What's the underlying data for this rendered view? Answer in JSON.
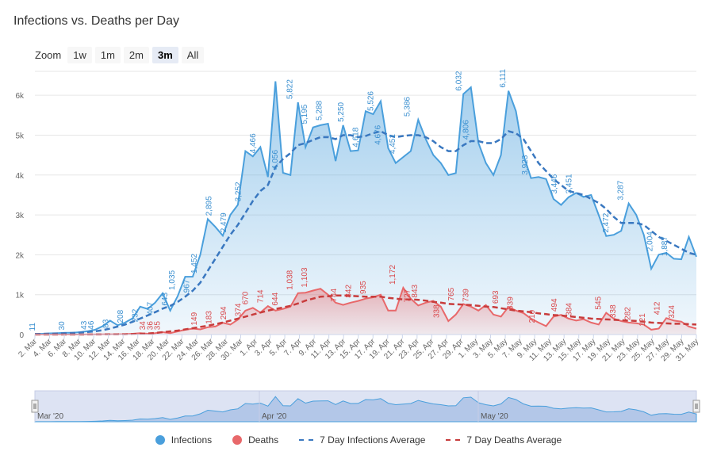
{
  "title": "Infections vs. Deaths per Day",
  "zoom": {
    "label": "Zoom",
    "buttons": [
      "1w",
      "1m",
      "2m",
      "3m",
      "All"
    ],
    "active": "3m"
  },
  "colors": {
    "infections": "#4a9fdc",
    "deaths": "#e8686a",
    "inf_avg": "#3a78c0",
    "death_avg": "#c83c3c"
  },
  "navigator": {
    "labels": [
      "Mar '20",
      "Apr '20",
      "May '20"
    ]
  },
  "legend": [
    "Infections",
    "Deaths",
    "7 Day Infections Average",
    "7 Day Deaths Average"
  ],
  "chart_data": {
    "type": "area",
    "x_labels": [
      "2. Mar",
      "4. Mar",
      "6. Mar",
      "8. Mar",
      "10. Mar",
      "12. Mar",
      "14. Mar",
      "16. Mar",
      "18. Mar",
      "20. Mar",
      "22. Mar",
      "24. Mar",
      "26. Mar",
      "28. Mar",
      "30. Mar",
      "1. Apr",
      "3. Apr",
      "5. Apr",
      "7. Apr",
      "9. Apr",
      "11. Apr",
      "13. Apr",
      "15. Apr",
      "17. Apr",
      "19. Apr",
      "21. Apr",
      "23. Apr",
      "25. Apr",
      "27. Apr",
      "29. Apr",
      "1. May",
      "3. May",
      "5. May",
      "7. May",
      "9. May",
      "11. May",
      "13. May",
      "15. May",
      "17. May",
      "19. May",
      "21. May",
      "23. May",
      "25. May",
      "27. May",
      "29. May",
      "31. May"
    ],
    "y_ticks": [
      0,
      1000,
      2000,
      3000,
      4000,
      5000,
      6000
    ],
    "y_tick_labels": [
      "0",
      "1k",
      "2k",
      "3k",
      "4k",
      "5k",
      "6k"
    ],
    "ylim": [
      0,
      6600
    ],
    "legend_position": "bottom",
    "series": [
      {
        "name": "Infections",
        "values": [
          11,
          20,
          30,
          35,
          43,
          46,
          60,
          83,
          120,
          208,
          350,
          232,
          300,
          407,
          700,
          643,
          800,
          1035,
          600,
          967,
          1450,
          1452,
          2000,
          2895,
          2700,
          2479,
          3000,
          3252,
          4600,
          4466,
          4700,
          3950,
          6350,
          4056,
          4000,
          5822,
          4700,
          5195,
          5250,
          5288,
          4350,
          5250,
          4600,
          4618,
          5600,
          5526,
          5850,
          4676,
          4300,
          4451,
          4600,
          5386,
          4900,
          4500,
          4300,
          4000,
          4050,
          6032,
          6200,
          4806,
          4300,
          4000,
          4500,
          6111,
          5600,
          4500,
          3923,
          3950,
          3900,
          3400,
          3250,
          3446,
          3550,
          3451,
          3500,
          3000,
          2472,
          2500,
          2600,
          3287,
          3000,
          2500,
          1650,
          2004,
          2050,
          1900,
          1887,
          2450,
          1950
        ],
        "labels": [
          [
            "2. Mar",
            11
          ],
          [
            "6. Mar",
            30
          ],
          [
            "9. Mar",
            43
          ],
          [
            "10. Mar",
            46
          ],
          [
            "12. Mar",
            83
          ],
          [
            "14. Mar",
            208
          ],
          [
            "16. Mar",
            232
          ],
          [
            "18. Mar",
            407
          ],
          [
            "20. Mar",
            643
          ],
          [
            "21. Mar",
            1035
          ],
          [
            "23. Mar",
            967
          ],
          [
            "24. Mar",
            1452
          ],
          [
            "26. Mar",
            2895
          ],
          [
            "28. Mar",
            2479
          ],
          [
            "30. Mar",
            3252
          ],
          [
            "2. Apr",
            4466
          ],
          [
            "5. Apr",
            4056
          ],
          [
            "7. Apr",
            5822
          ],
          [
            "9. Apr",
            5195
          ],
          [
            "11. Apr",
            5288
          ],
          [
            "14. Apr",
            5250
          ],
          [
            "16. Apr",
            4618
          ],
          [
            "18. Apr",
            5526
          ],
          [
            "19. Apr",
            4676
          ],
          [
            "21. Apr",
            4451
          ],
          [
            "23. Apr",
            5386
          ],
          [
            "30. Apr",
            6032
          ],
          [
            "1. May",
            4806
          ],
          [
            "6. May",
            6111
          ],
          [
            "9. May",
            3923
          ],
          [
            "13. May",
            3446
          ],
          [
            "15. May",
            3451
          ],
          [
            "20. May",
            2472
          ],
          [
            "22. May",
            3287
          ],
          [
            "26. May",
            2004
          ],
          [
            "28. May",
            1887
          ]
        ]
      },
      {
        "name": "Deaths",
        "values": [
          0,
          0,
          0,
          0,
          0,
          0,
          0,
          1,
          2,
          3,
          5,
          8,
          10,
          20,
          34,
          20,
          35,
          60,
          36,
          80,
          120,
          149,
          130,
          183,
          200,
          294,
          250,
          374,
          600,
          670,
          550,
          714,
          600,
          644,
          700,
          1038,
          1050,
          1103,
          1150,
          1000,
          800,
          744,
          800,
          842,
          900,
          935,
          1000,
          600,
          600,
          1172,
          900,
          727,
          800,
          843,
          700,
          338,
          500,
          765,
          700,
          600,
          739,
          500,
          450,
          693,
          600,
          539,
          400,
          300,
          210,
          450,
          494,
          400,
          350,
          384,
          300,
          250,
          545,
          400,
          338,
          300,
          282,
          250,
          121,
          150,
          412,
          350,
          324,
          200,
          150
        ],
        "labels": [
          [
            "17. Mar",
            34
          ],
          [
            "18. Mar",
            36
          ],
          [
            "19. Mar",
            35
          ],
          [
            "24. Mar",
            149
          ],
          [
            "26. Mar",
            183
          ],
          [
            "28. Mar",
            294
          ],
          [
            "30. Mar",
            374
          ],
          [
            "1. Apr",
            670
          ],
          [
            "3. Apr",
            714
          ],
          [
            "5. Apr",
            644
          ],
          [
            "7. Apr",
            1038
          ],
          [
            "9. Apr",
            1103
          ],
          [
            "13. Apr",
            744
          ],
          [
            "15. Apr",
            842
          ],
          [
            "17. Apr",
            935
          ],
          [
            "21. Apr",
            1172
          ],
          [
            "23. Apr",
            727
          ],
          [
            "24. Apr",
            843
          ],
          [
            "27. Apr",
            338
          ],
          [
            "29. Apr",
            765
          ],
          [
            "1. May",
            739
          ],
          [
            "5. May",
            693
          ],
          [
            "7. May",
            539
          ],
          [
            "10. May",
            210
          ],
          [
            "13. May",
            494
          ],
          [
            "15. May",
            384
          ],
          [
            "19. May",
            545
          ],
          [
            "21. May",
            338
          ],
          [
            "23. May",
            282
          ],
          [
            "25. May",
            121
          ],
          [
            "27. May",
            412
          ],
          [
            "29. May",
            324
          ]
        ]
      },
      {
        "name": "7 Day Infections Average",
        "values": [
          11,
          15,
          20,
          25,
          32,
          40,
          50,
          63,
          80,
          110,
          150,
          200,
          250,
          320,
          400,
          480,
          560,
          650,
          720,
          820,
          950,
          1100,
          1300,
          1600,
          1900,
          2200,
          2500,
          2750,
          3050,
          3350,
          3600,
          3750,
          4200,
          4400,
          4550,
          4750,
          4800,
          4880,
          4950,
          4950,
          4900,
          5000,
          5000,
          4950,
          4980,
          5050,
          5100,
          5000,
          4950,
          4980,
          5000,
          5000,
          4950,
          4850,
          4700,
          4600,
          4600,
          4750,
          4850,
          4850,
          4800,
          4800,
          4900,
          5100,
          5050,
          4900,
          4600,
          4300,
          4100,
          3900,
          3750,
          3600,
          3550,
          3500,
          3400,
          3300,
          3150,
          2950,
          2800,
          2800,
          2800,
          2750,
          2600,
          2450,
          2350,
          2250,
          2150,
          2050,
          2000
        ],
        "labels": []
      },
      {
        "name": "7 Day Deaths Average",
        "values": [
          0,
          0,
          0,
          0,
          0,
          0,
          0,
          1,
          2,
          3,
          4,
          6,
          8,
          12,
          18,
          25,
          40,
          60,
          80,
          100,
          130,
          160,
          190,
          220,
          260,
          300,
          350,
          400,
          450,
          500,
          550,
          600,
          640,
          680,
          720,
          780,
          850,
          900,
          950,
          960,
          980,
          980,
          970,
          960,
          950,
          950,
          950,
          920,
          900,
          880,
          880,
          870,
          850,
          820,
          800,
          770,
          760,
          750,
          740,
          720,
          700,
          690,
          660,
          630,
          600,
          580,
          560,
          530,
          510,
          490,
          480,
          460,
          440,
          420,
          400,
          390,
          380,
          370,
          360,
          350,
          340,
          320,
          300,
          290,
          280,
          270,
          270,
          260,
          250
        ],
        "labels": []
      }
    ]
  }
}
